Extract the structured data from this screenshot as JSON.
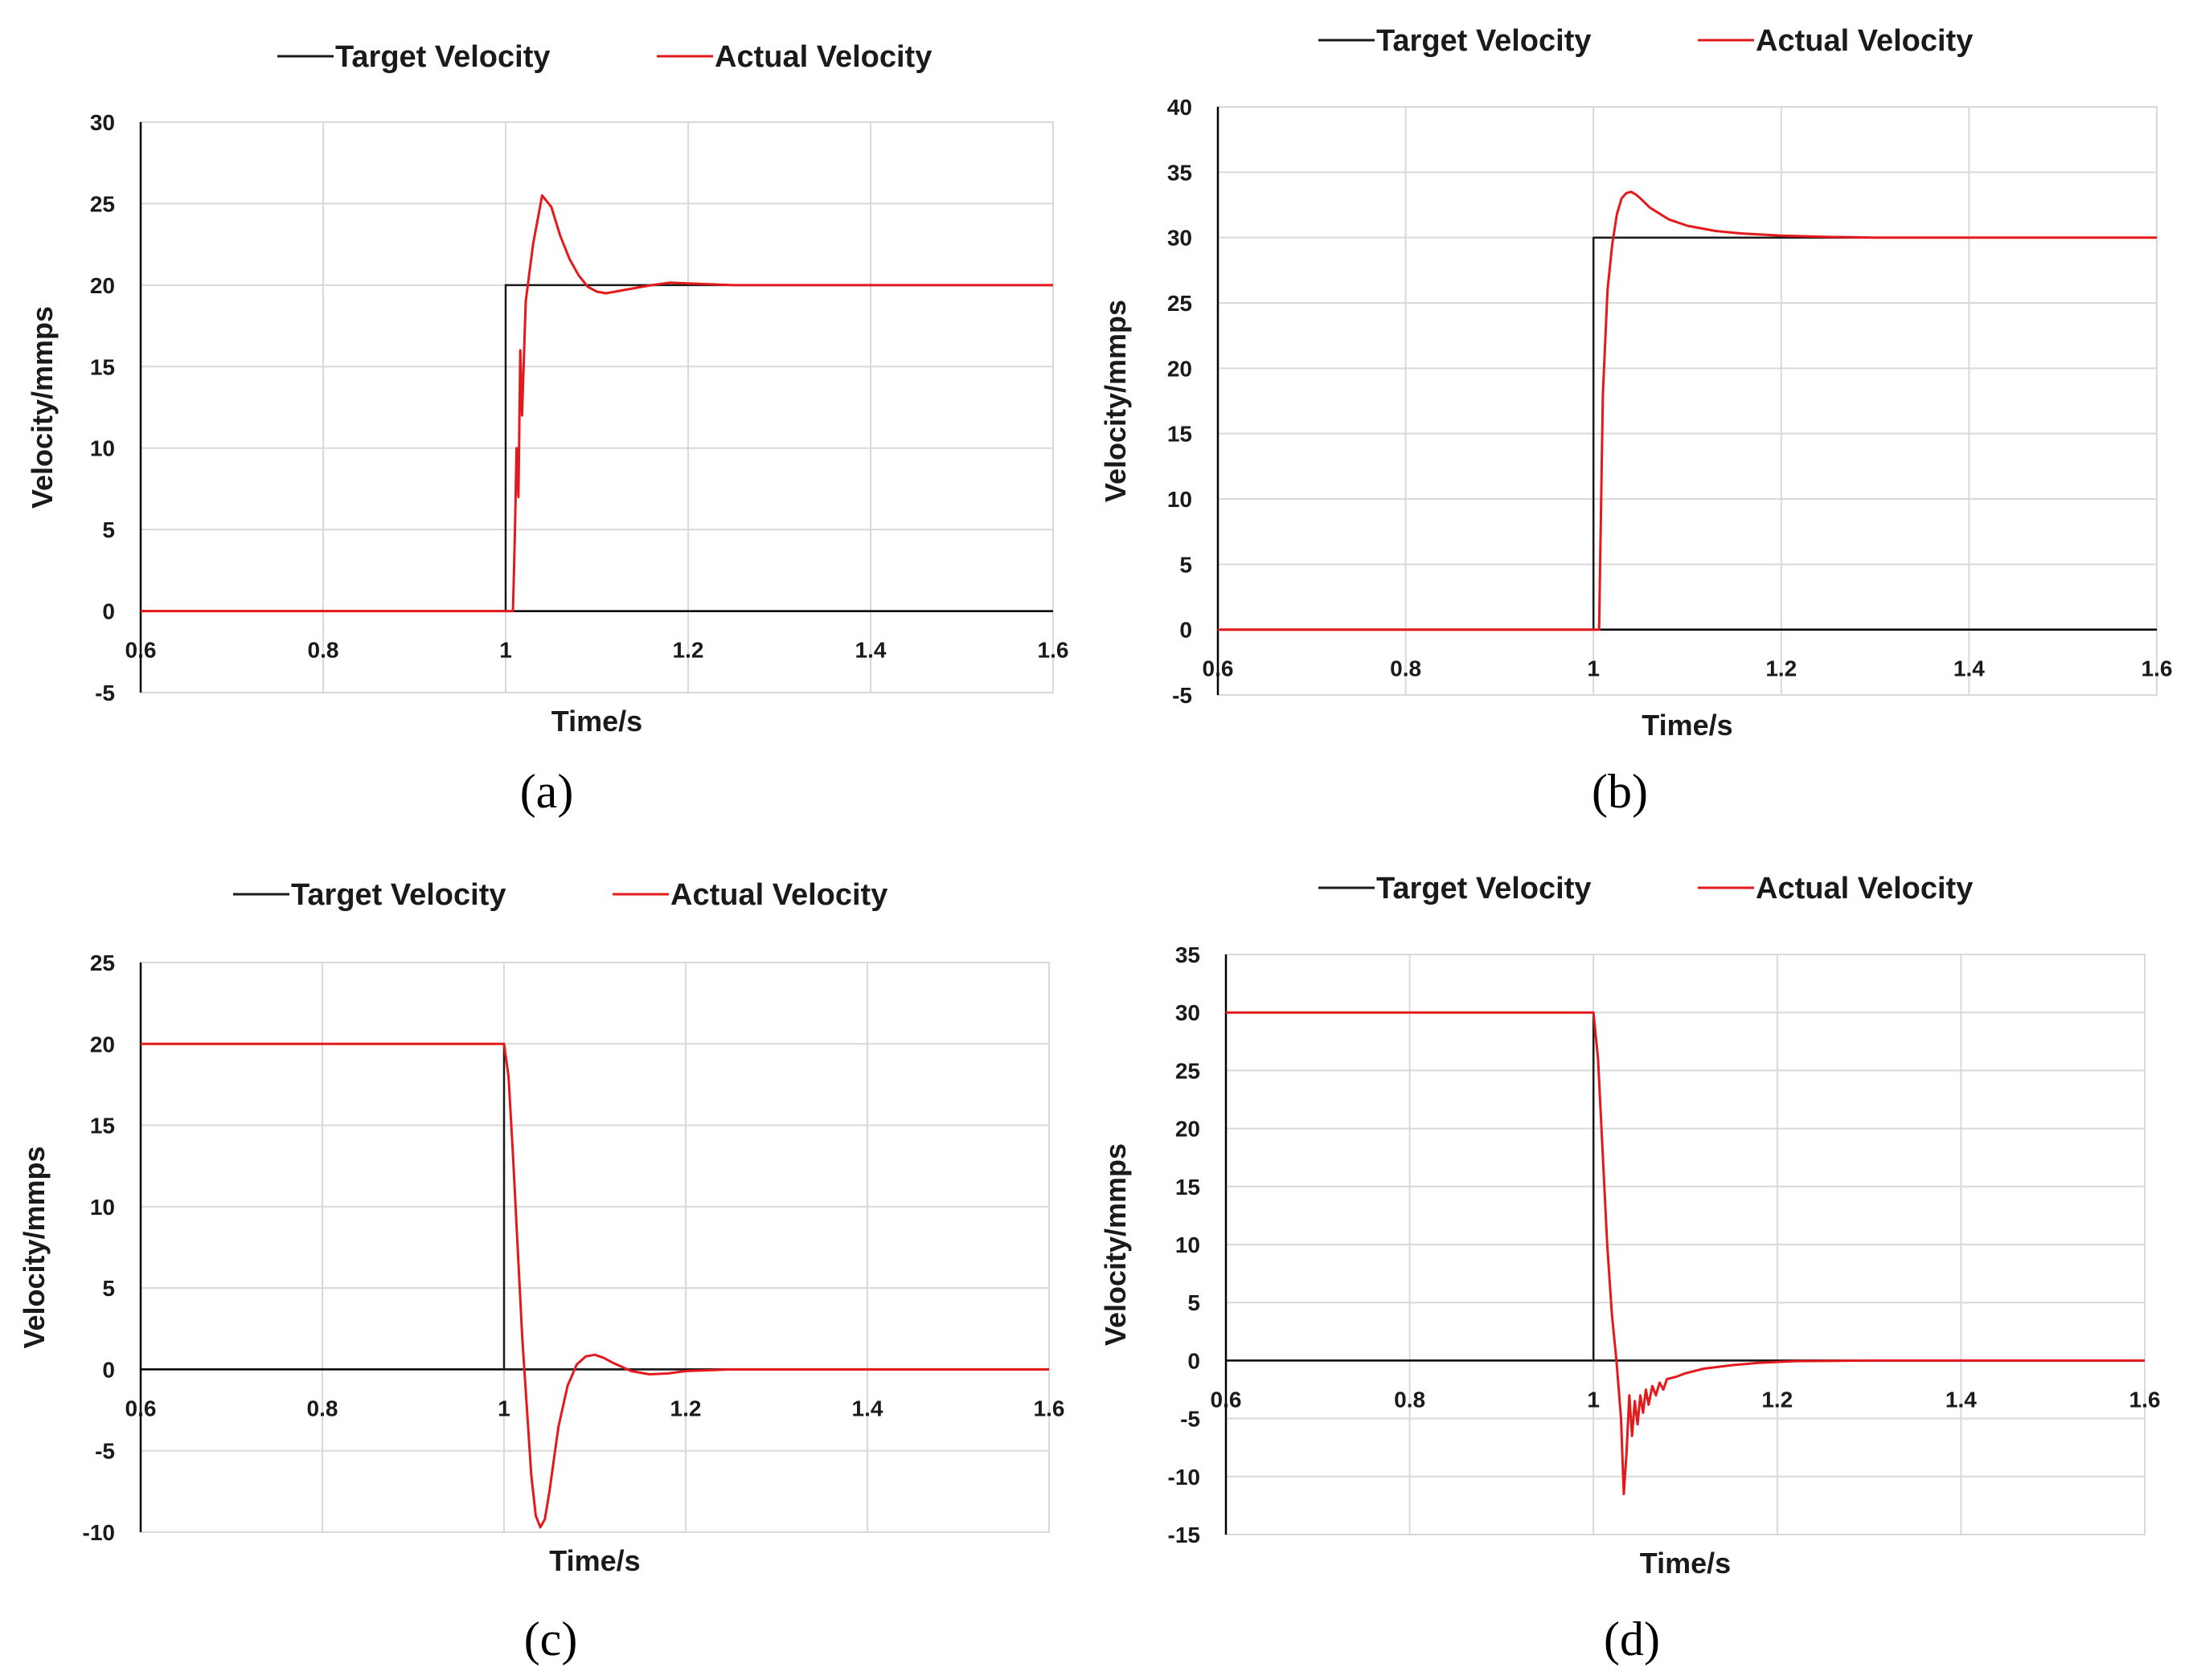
{
  "figure": {
    "colors": {
      "target": "#1a1a1a",
      "actual": "#e3191c",
      "grid": "#d9d9d9"
    }
  },
  "chart_data": [
    {
      "id": "a",
      "type": "line",
      "caption": "(a)",
      "xlabel": "Time/s",
      "ylabel": "Velocity/mmps",
      "xlim": [
        0.6,
        1.6
      ],
      "ylim": [
        -5,
        30
      ],
      "xticks": [
        "0.6",
        "0.8",
        "1",
        "1.2",
        "1.4",
        "1.6"
      ],
      "yticks": [
        "-5",
        "0",
        "5",
        "10",
        "15",
        "20",
        "25",
        "30"
      ],
      "xtick_values": [
        0.6,
        0.8,
        1.0,
        1.2,
        1.4,
        1.6
      ],
      "ytick_values": [
        -5,
        0,
        5,
        10,
        15,
        20,
        25,
        30
      ],
      "legend": [
        "Target Velocity",
        "Actual Velocity"
      ],
      "series": [
        {
          "name": "Target Velocity",
          "color": "#1a1a1a",
          "x": [
            0.6,
            1.0,
            1.0,
            1.6
          ],
          "y": [
            0,
            0,
            20,
            20
          ]
        },
        {
          "name": "Actual Velocity",
          "color": "#e3191c",
          "x": [
            0.6,
            1.008,
            1.01,
            1.012,
            1.014,
            1.016,
            1.018,
            1.022,
            1.03,
            1.04,
            1.05,
            1.06,
            1.07,
            1.08,
            1.09,
            1.1,
            1.11,
            1.12,
            1.14,
            1.16,
            1.18,
            1.2,
            1.25,
            1.3,
            1.4,
            1.5,
            1.6
          ],
          "y": [
            0,
            0,
            4.5,
            10,
            7,
            16,
            12,
            19,
            22.5,
            25.5,
            24.8,
            23.0,
            21.6,
            20.6,
            19.9,
            19.6,
            19.5,
            19.6,
            19.8,
            20.0,
            20.15,
            20.1,
            20.0,
            20.0,
            20.0,
            20.0,
            20.0
          ]
        }
      ]
    },
    {
      "id": "b",
      "type": "line",
      "caption": "(b)",
      "xlabel": "Time/s",
      "ylabel": "Velocity/mmps",
      "xlim": [
        0.6,
        1.6
      ],
      "ylim": [
        -5,
        40
      ],
      "xticks": [
        "0.6",
        "0.8",
        "1",
        "1.2",
        "1.4",
        "1.6"
      ],
      "yticks": [
        "-5",
        "0",
        "5",
        "10",
        "15",
        "20",
        "25",
        "30",
        "35",
        "40"
      ],
      "xtick_values": [
        0.6,
        0.8,
        1.0,
        1.2,
        1.4,
        1.6
      ],
      "ytick_values": [
        -5,
        0,
        5,
        10,
        15,
        20,
        25,
        30,
        35,
        40
      ],
      "legend": [
        "Target Velocity",
        "Actual Velocity"
      ],
      "series": [
        {
          "name": "Target Velocity",
          "color": "#1a1a1a",
          "x": [
            0.6,
            1.0,
            1.0,
            1.6
          ],
          "y": [
            0,
            0,
            30,
            30
          ]
        },
        {
          "name": "Actual Velocity",
          "color": "#e3191c",
          "x": [
            0.6,
            1.006,
            1.01,
            1.015,
            1.02,
            1.025,
            1.03,
            1.035,
            1.04,
            1.045,
            1.05,
            1.06,
            1.08,
            1.1,
            1.13,
            1.16,
            1.2,
            1.25,
            1.3,
            1.4,
            1.5,
            1.6
          ],
          "y": [
            0,
            0,
            18,
            26,
            29.5,
            31.8,
            33.0,
            33.4,
            33.5,
            33.3,
            33.0,
            32.3,
            31.4,
            30.9,
            30.5,
            30.3,
            30.15,
            30.05,
            30.0,
            30.0,
            30.0,
            30.0
          ]
        }
      ]
    },
    {
      "id": "c",
      "type": "line",
      "caption": "(c)",
      "xlabel": "Time/s",
      "ylabel": "Velocity/mmps",
      "xlim": [
        0.6,
        1.6
      ],
      "ylim": [
        -10,
        25
      ],
      "xticks": [
        "0.6",
        "0.8",
        "1",
        "1.2",
        "1.4",
        "1.6"
      ],
      "yticks": [
        "-10",
        "-5",
        "0",
        "5",
        "10",
        "15",
        "20",
        "25"
      ],
      "xtick_values": [
        0.6,
        0.8,
        1.0,
        1.2,
        1.4,
        1.6
      ],
      "ytick_values": [
        -10,
        -5,
        0,
        5,
        10,
        15,
        20,
        25
      ],
      "legend": [
        "Target Velocity",
        "Actual Velocity"
      ],
      "series": [
        {
          "name": "Target Velocity",
          "color": "#1a1a1a",
          "x": [
            0.6,
            1.0,
            1.0,
            1.6
          ],
          "y": [
            20,
            20,
            0,
            0
          ]
        },
        {
          "name": "Actual Velocity",
          "color": "#e3191c",
          "x": [
            0.6,
            1.0,
            1.005,
            1.01,
            1.02,
            1.03,
            1.035,
            1.04,
            1.045,
            1.05,
            1.055,
            1.06,
            1.07,
            1.08,
            1.09,
            1.1,
            1.11,
            1.12,
            1.14,
            1.16,
            1.18,
            1.2,
            1.25,
            1.3,
            1.4,
            1.5,
            1.6
          ],
          "y": [
            20,
            20,
            18,
            13,
            2,
            -6.5,
            -9,
            -9.7,
            -9.2,
            -7.5,
            -5.5,
            -3.5,
            -1.0,
            0.3,
            0.8,
            0.9,
            0.7,
            0.4,
            -0.1,
            -0.3,
            -0.25,
            -0.1,
            0.0,
            0.0,
            0.0,
            0.0,
            0.0
          ]
        }
      ]
    },
    {
      "id": "d",
      "type": "line",
      "caption": "(d)",
      "xlabel": "Time/s",
      "ylabel": "Velocity/mmps",
      "xlim": [
        0.6,
        1.6
      ],
      "ylim": [
        -15,
        35
      ],
      "xticks": [
        "0.6",
        "0.8",
        "1",
        "1.2",
        "1.4",
        "1.6"
      ],
      "yticks": [
        "-15",
        "-10",
        "-5",
        "0",
        "5",
        "10",
        "15",
        "20",
        "25",
        "30",
        "35"
      ],
      "xtick_values": [
        0.6,
        0.8,
        1.0,
        1.2,
        1.4,
        1.6
      ],
      "ytick_values": [
        -15,
        -10,
        -5,
        0,
        5,
        10,
        15,
        20,
        25,
        30,
        35
      ],
      "legend": [
        "Target Velocity",
        "Actual Velocity"
      ],
      "series": [
        {
          "name": "Target Velocity",
          "color": "#1a1a1a",
          "x": [
            0.6,
            1.0,
            1.0,
            1.6
          ],
          "y": [
            30,
            30,
            0,
            0
          ]
        },
        {
          "name": "Actual Velocity",
          "color": "#e3191c",
          "x": [
            0.6,
            1.0,
            1.005,
            1.01,
            1.015,
            1.02,
            1.025,
            1.03,
            1.033,
            1.036,
            1.039,
            1.042,
            1.045,
            1.048,
            1.051,
            1.054,
            1.057,
            1.06,
            1.064,
            1.068,
            1.072,
            1.076,
            1.08,
            1.09,
            1.1,
            1.12,
            1.15,
            1.18,
            1.22,
            1.3,
            1.4,
            1.5,
            1.6
          ],
          "y": [
            30,
            30,
            26,
            18,
            10,
            4,
            0,
            -5,
            -11.5,
            -8,
            -3,
            -6.5,
            -3.5,
            -5.5,
            -3.0,
            -4.5,
            -2.5,
            -3.8,
            -2.2,
            -3.0,
            -1.9,
            -2.5,
            -1.6,
            -1.4,
            -1.1,
            -0.7,
            -0.4,
            -0.2,
            -0.05,
            0.0,
            0.0,
            0.0,
            0.0
          ]
        }
      ]
    }
  ]
}
